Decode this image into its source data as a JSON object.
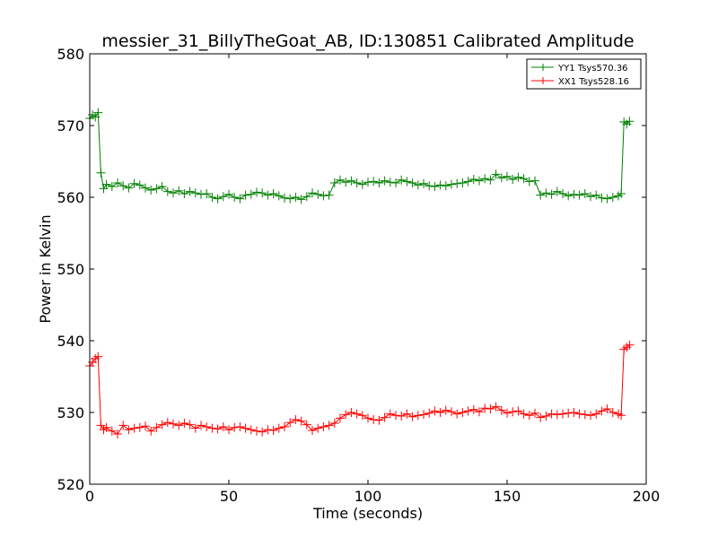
{
  "chart_data": {
    "type": "line",
    "title": "messier_31_BillyTheGoat_AB, ID:130851 Calibrated Amplitude",
    "xlabel": "Time (seconds)",
    "ylabel": "Power in Kelvin",
    "xlim": [
      0,
      200
    ],
    "ylim": [
      520,
      580
    ],
    "xticks": [
      0,
      50,
      100,
      150,
      200
    ],
    "yticks": [
      520,
      530,
      540,
      550,
      560,
      570,
      580
    ],
    "grid": false,
    "legend_position": "top-right",
    "series": [
      {
        "name": "YY1 Tsys570.36",
        "color": "#008000",
        "marker": "plus",
        "x": [
          0,
          1,
          2,
          3,
          4,
          5,
          6,
          8,
          10,
          12,
          14,
          16,
          18,
          20,
          22,
          24,
          26,
          28,
          30,
          32,
          34,
          36,
          38,
          40,
          42,
          44,
          46,
          48,
          50,
          52,
          54,
          56,
          58,
          60,
          62,
          64,
          66,
          68,
          70,
          72,
          74,
          76,
          78,
          80,
          82,
          84,
          86,
          88,
          90,
          92,
          94,
          96,
          98,
          100,
          102,
          104,
          106,
          108,
          110,
          112,
          114,
          116,
          118,
          120,
          122,
          124,
          126,
          128,
          130,
          132,
          134,
          136,
          138,
          140,
          142,
          144,
          146,
          148,
          150,
          152,
          154,
          156,
          158,
          160,
          162,
          164,
          166,
          168,
          170,
          172,
          174,
          176,
          178,
          180,
          182,
          184,
          186,
          188,
          190,
          191,
          192,
          193,
          194
        ],
        "y": [
          571.0,
          571.5,
          571.2,
          571.8,
          563.4,
          561.2,
          561.8,
          561.5,
          562.0,
          561.6,
          561.3,
          561.9,
          561.7,
          561.3,
          561.0,
          561.2,
          561.5,
          560.8,
          560.6,
          560.9,
          560.5,
          560.8,
          560.6,
          560.4,
          560.5,
          560.0,
          559.8,
          560.1,
          560.4,
          560.0,
          559.8,
          560.3,
          560.4,
          560.7,
          560.6,
          560.3,
          560.5,
          560.2,
          559.9,
          559.8,
          560.0,
          559.7,
          560.1,
          560.6,
          560.4,
          560.2,
          560.3,
          562.0,
          562.4,
          562.1,
          562.3,
          562.0,
          561.8,
          562.1,
          562.2,
          562.0,
          562.3,
          562.1,
          562.0,
          562.4,
          562.2,
          562.0,
          561.7,
          561.9,
          561.6,
          561.5,
          561.7,
          561.6,
          561.8,
          561.9,
          562.0,
          562.2,
          562.5,
          562.3,
          562.6,
          562.4,
          563.2,
          562.7,
          562.9,
          562.5,
          562.8,
          562.6,
          562.2,
          562.3,
          560.3,
          560.6,
          560.4,
          560.8,
          560.5,
          560.2,
          560.4,
          560.3,
          560.5,
          560.1,
          560.3,
          559.9,
          559.8,
          560.0,
          560.2,
          560.5,
          570.5,
          570.2,
          570.6
        ]
      },
      {
        "name": "XX1 Tsys528.16",
        "color": "#ff0000",
        "marker": "plus",
        "x": [
          0,
          1,
          2,
          3,
          4,
          5,
          6,
          8,
          10,
          12,
          14,
          16,
          18,
          20,
          22,
          24,
          26,
          28,
          30,
          32,
          34,
          36,
          38,
          40,
          42,
          44,
          46,
          48,
          50,
          52,
          54,
          56,
          58,
          60,
          62,
          64,
          66,
          68,
          70,
          72,
          74,
          76,
          78,
          80,
          82,
          84,
          86,
          88,
          90,
          92,
          94,
          96,
          98,
          100,
          102,
          104,
          106,
          108,
          110,
          112,
          114,
          116,
          118,
          120,
          122,
          124,
          126,
          128,
          130,
          132,
          134,
          136,
          138,
          140,
          142,
          144,
          146,
          148,
          150,
          152,
          154,
          156,
          158,
          160,
          162,
          164,
          166,
          168,
          170,
          172,
          174,
          176,
          178,
          180,
          182,
          184,
          186,
          188,
          190,
          191,
          192,
          193,
          194
        ],
        "y": [
          536.5,
          537.0,
          537.5,
          537.8,
          528.2,
          527.6,
          527.9,
          527.4,
          527.0,
          528.2,
          527.6,
          527.8,
          527.9,
          528.1,
          527.4,
          527.9,
          528.3,
          528.6,
          528.4,
          528.2,
          528.5,
          528.3,
          527.8,
          528.2,
          528.0,
          527.8,
          527.7,
          528.0,
          527.6,
          527.9,
          528.0,
          527.8,
          527.6,
          527.4,
          527.3,
          527.6,
          527.5,
          527.8,
          528.0,
          528.6,
          529.0,
          528.8,
          528.3,
          527.5,
          527.8,
          528.0,
          528.2,
          528.5,
          529.2,
          529.7,
          530.0,
          529.8,
          529.6,
          529.2,
          529.0,
          528.9,
          529.3,
          529.8,
          529.6,
          529.5,
          529.8,
          529.4,
          529.6,
          529.7,
          529.9,
          530.2,
          530.0,
          530.3,
          530.1,
          529.8,
          530.0,
          530.2,
          530.4,
          530.1,
          530.6,
          530.5,
          530.8,
          530.3,
          529.9,
          530.1,
          530.2,
          529.8,
          529.6,
          529.9,
          529.3,
          529.5,
          529.8,
          529.7,
          529.8,
          529.9,
          530.0,
          529.8,
          529.7,
          529.6,
          529.8,
          530.2,
          530.5,
          530.0,
          529.8,
          529.6,
          538.8,
          539.1,
          539.4
        ]
      }
    ]
  }
}
